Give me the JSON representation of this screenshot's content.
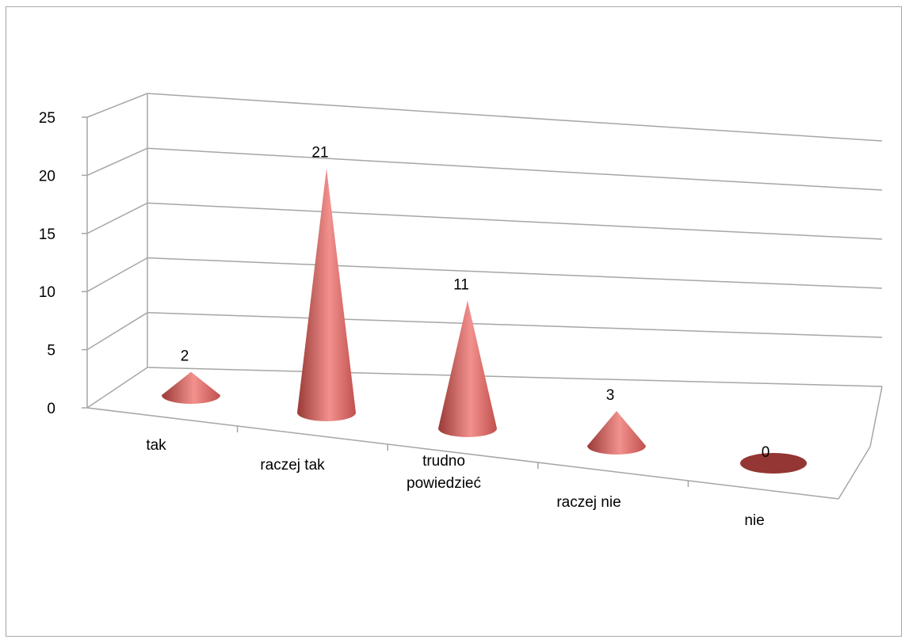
{
  "chart_data": {
    "type": "bar",
    "style": "3d-cone",
    "title": "",
    "xlabel": "",
    "ylabel": "",
    "categories": [
      "tak",
      "raczej tak",
      "trudno powiedzieć",
      "raczej nie",
      "nie"
    ],
    "category_lines": [
      [
        "tak"
      ],
      [
        "raczej tak"
      ],
      [
        "trudno",
        "powiedzieć"
      ],
      [
        "raczej nie"
      ],
      [
        "nie"
      ]
    ],
    "values": [
      2,
      21,
      11,
      3,
      0
    ],
    "data_labels": [
      "2",
      "21",
      "11",
      "3",
      "0"
    ],
    "ylim": [
      0,
      25
    ],
    "yticks": [
      "0",
      "5",
      "10",
      "15",
      "20",
      "25"
    ],
    "grid": true,
    "legend": "none",
    "colors": {
      "cone": "#c0504d",
      "cone_light": "#f2918e",
      "cone_dark": "#9a3a37",
      "zero_disc": "#943634",
      "grid": "#a6a6a6"
    }
  }
}
